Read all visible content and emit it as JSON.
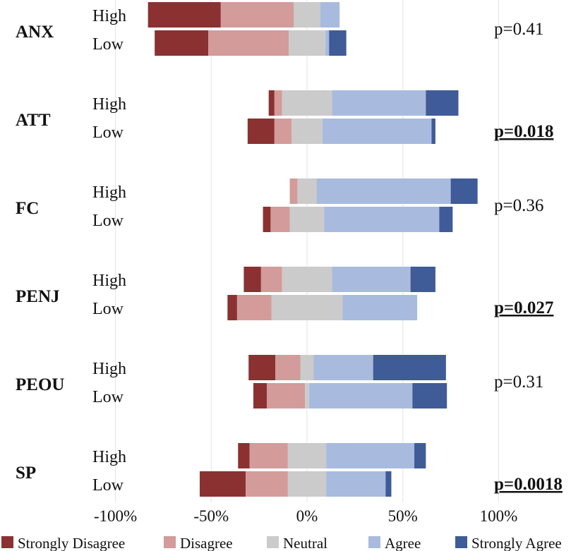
{
  "chart_data": {
    "type": "diverging-stacked-bar",
    "xlim": [
      -100,
      100
    ],
    "xticks": [
      -100,
      -50,
      0,
      50,
      100
    ],
    "xtick_labels": [
      "-100%",
      "-50%",
      "0%",
      "50%",
      "100%"
    ],
    "series": [
      {
        "name": "Strongly Disagree",
        "color": "#8b3131"
      },
      {
        "name": "Disagree",
        "color": "#d39b9a"
      },
      {
        "name": "Neutral",
        "color": "#cbcbcb"
      },
      {
        "name": "Agree",
        "color": "#a8bbde"
      },
      {
        "name": "Strongly Agree",
        "color": "#3f5b98"
      }
    ],
    "groups": [
      {
        "name": "ANX",
        "p_value": "p=0.41",
        "significant": false,
        "rows": [
          {
            "label": "High",
            "values": [
              38,
              38,
              14,
              10,
              0
            ]
          },
          {
            "label": "Low",
            "values": [
              28,
              42,
              19,
              2,
              9
            ]
          }
        ]
      },
      {
        "name": "ATT",
        "p_value": "p=0.018",
        "significant": true,
        "rows": [
          {
            "label": "High",
            "values": [
              3,
              4,
              26,
              49,
              17
            ]
          },
          {
            "label": "Low",
            "values": [
              14,
              9,
              16,
              57,
              2
            ]
          }
        ]
      },
      {
        "name": "FC",
        "p_value": "p=0.36",
        "significant": false,
        "rows": [
          {
            "label": "High",
            "values": [
              0,
              4,
              10,
              70,
              14
            ]
          },
          {
            "label": "Low",
            "values": [
              4,
              10,
              18,
              60,
              7
            ]
          }
        ]
      },
      {
        "name": "PENJ",
        "p_value": "p=0.027",
        "significant": true,
        "rows": [
          {
            "label": "High",
            "values": [
              9,
              11,
              26,
              41,
              13
            ]
          },
          {
            "label": "Low",
            "values": [
              5,
              18,
              37,
              39,
              0
            ]
          }
        ]
      },
      {
        "name": "PEOU",
        "p_value": "p=0.31",
        "significant": false,
        "rows": [
          {
            "label": "High",
            "values": [
              14,
              13,
              7,
              31,
              38
            ]
          },
          {
            "label": "Low",
            "values": [
              7,
              20,
              2,
              54,
              18
            ]
          }
        ]
      },
      {
        "name": "SP",
        "p_value": "p=0.0018",
        "significant": true,
        "rows": [
          {
            "label": "High",
            "values": [
              6,
              20,
              20,
              46,
              6
            ]
          },
          {
            "label": "Low",
            "values": [
              24,
              22,
              20,
              31,
              3
            ]
          }
        ]
      }
    ]
  }
}
